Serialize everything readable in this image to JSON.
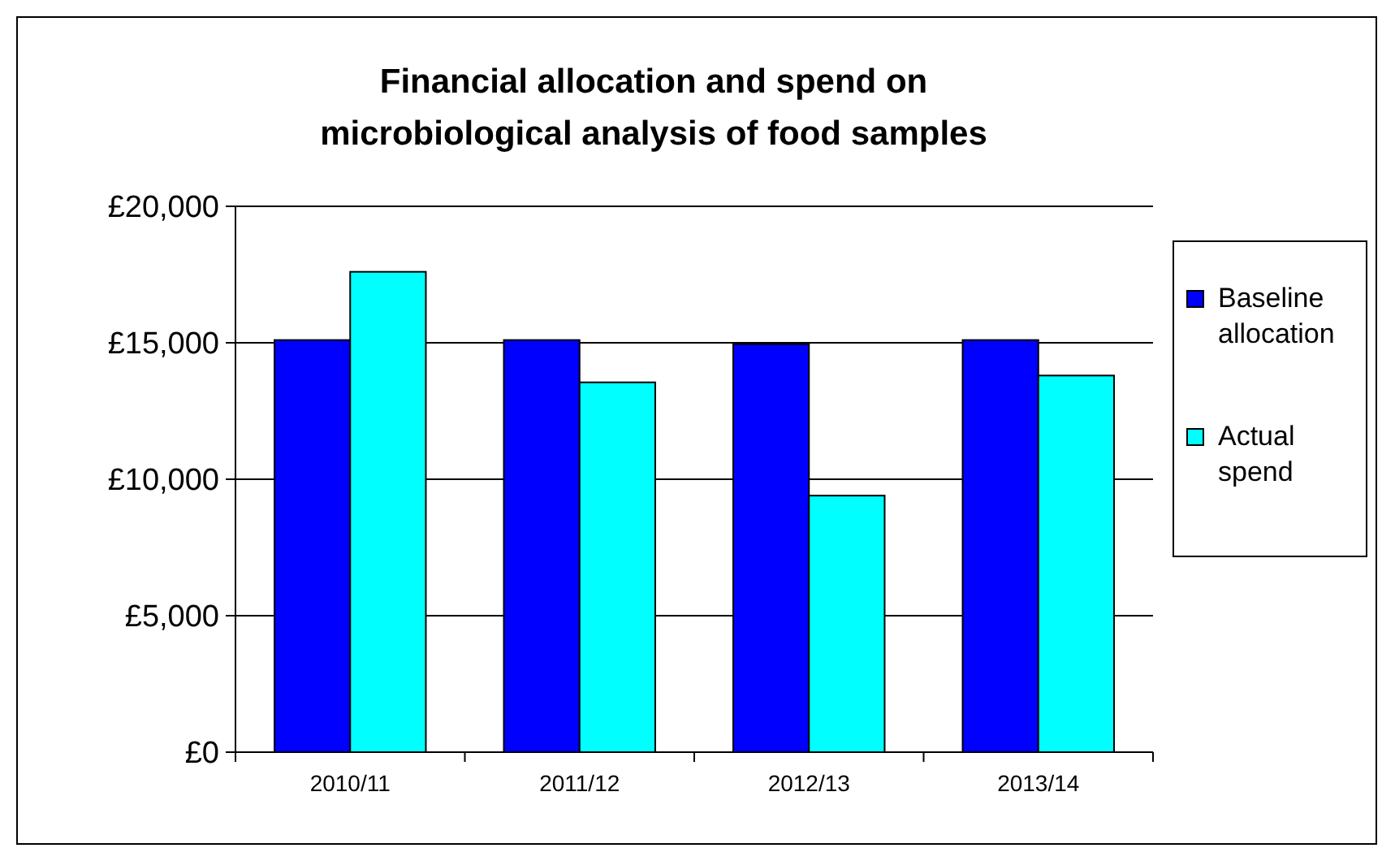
{
  "chart_data": {
    "type": "bar",
    "title": "Financial allocation and spend on microbiological analysis of food samples",
    "categories": [
      "2010/11",
      "2011/12",
      "2012/13",
      "2013/14"
    ],
    "series": [
      {
        "name": "Baseline allocation",
        "color": "#0000ff",
        "values": [
          15100,
          15100,
          14950,
          15100
        ]
      },
      {
        "name": "Actual spend",
        "color": "#00ffff",
        "values": [
          17600,
          13550,
          9400,
          13800
        ]
      }
    ],
    "ylim": [
      0,
      20000
    ],
    "yticks": [
      {
        "value": 0,
        "label": "£0"
      },
      {
        "value": 5000,
        "label": "£5,000"
      },
      {
        "value": 10000,
        "label": "£10,000"
      },
      {
        "value": 15000,
        "label": "£15,000"
      },
      {
        "value": 20000,
        "label": "£20,000"
      }
    ],
    "grid": "y",
    "legend": "right"
  }
}
